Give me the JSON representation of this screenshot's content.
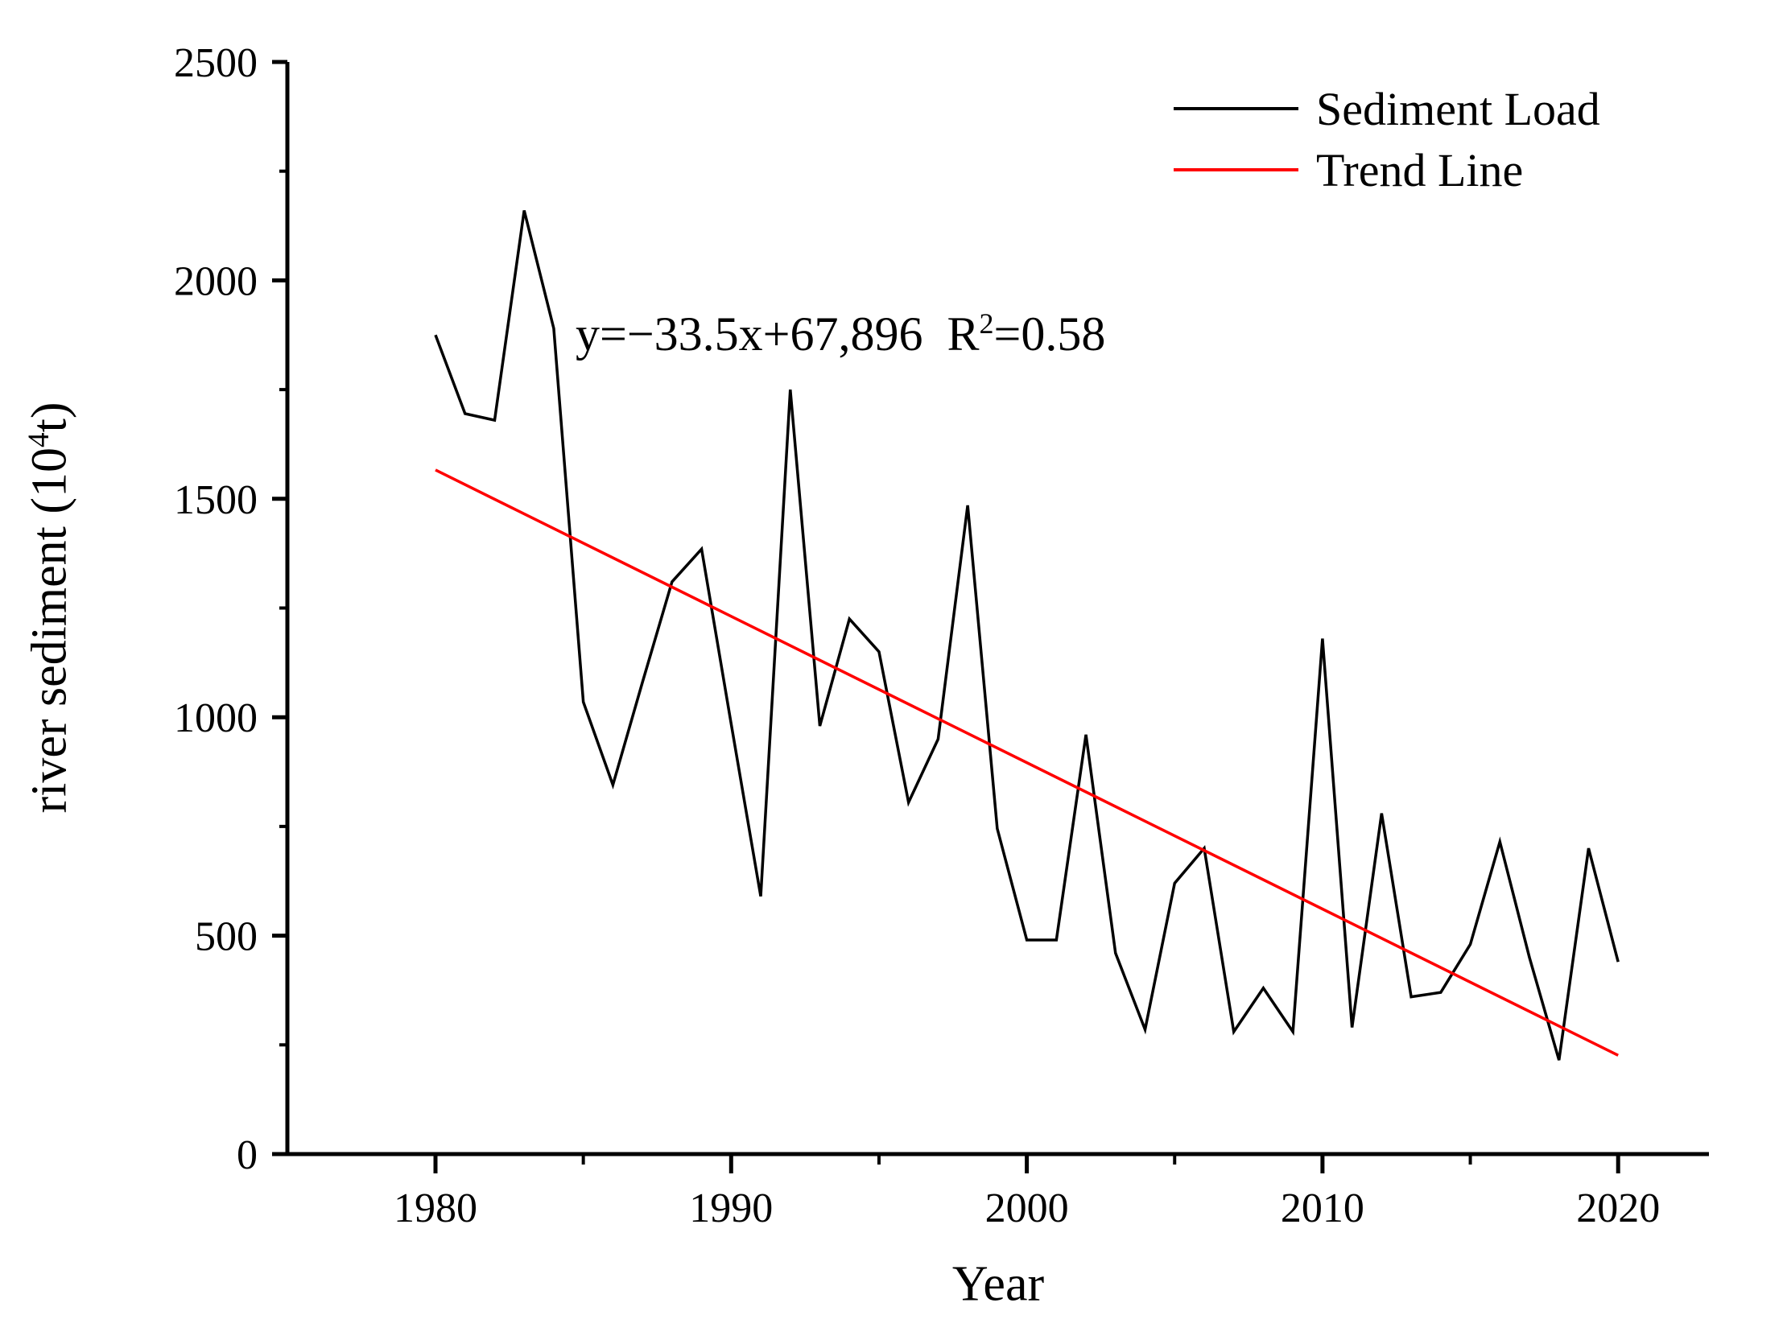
{
  "figure": {
    "xlabel": "Year",
    "ylabel": {
      "pre": "river sediment (10",
      "sup": "4",
      "post": "t)"
    },
    "annotation": {
      "pre": "y=−33.5x+67,896  R",
      "sup": "2",
      "post": "=0.58"
    },
    "legend": [
      {
        "label": "Sediment Load",
        "color": "#000000"
      },
      {
        "label": "Trend Line",
        "color": "#ff0000"
      }
    ]
  },
  "chart_data": {
    "type": "line",
    "title": "",
    "xlabel": "Year",
    "ylabel": "river sediment (10^4 t)",
    "grid": false,
    "legend_position": "top-right",
    "xlim": [
      1975,
      2023
    ],
    "ylim": [
      0,
      2500
    ],
    "x_major_ticks": [
      1980,
      1990,
      2000,
      2010,
      2020
    ],
    "x_minor_ticks": [
      1985,
      1995,
      2005,
      2015
    ],
    "y_major_ticks": [
      0,
      500,
      1000,
      1500,
      2000,
      2500
    ],
    "y_minor_ticks": [
      250,
      750,
      1250,
      1750,
      2250
    ],
    "x": [
      1980,
      1981,
      1982,
      1983,
      1984,
      1985,
      1986,
      1987,
      1988,
      1989,
      1990,
      1991,
      1992,
      1993,
      1994,
      1995,
      1996,
      1997,
      1998,
      1999,
      2000,
      2001,
      2002,
      2003,
      2004,
      2005,
      2006,
      2007,
      2008,
      2009,
      2010,
      2011,
      2012,
      2013,
      2014,
      2015,
      2016,
      2017,
      2018,
      2019,
      2020
    ],
    "series": [
      {
        "name": "Sediment Load",
        "color": "#000000",
        "values": [
          1875,
          1695,
          1680,
          2160,
          1890,
          1035,
          845,
          1080,
          1310,
          1385,
          985,
          590,
          1750,
          980,
          1225,
          1150,
          805,
          950,
          1485,
          745,
          490,
          490,
          960,
          460,
          285,
          620,
          700,
          280,
          380,
          280,
          1180,
          290,
          780,
          360,
          370,
          480,
          715,
          450,
          215,
          700,
          440
        ]
      },
      {
        "name": "Trend Line",
        "color": "#ff0000",
        "trend": {
          "slope": -33.5,
          "intercept": 67896
        },
        "x_range": [
          1980,
          2020
        ]
      }
    ],
    "annotation": "y=−33.5x+67,896  R²=0.58"
  }
}
